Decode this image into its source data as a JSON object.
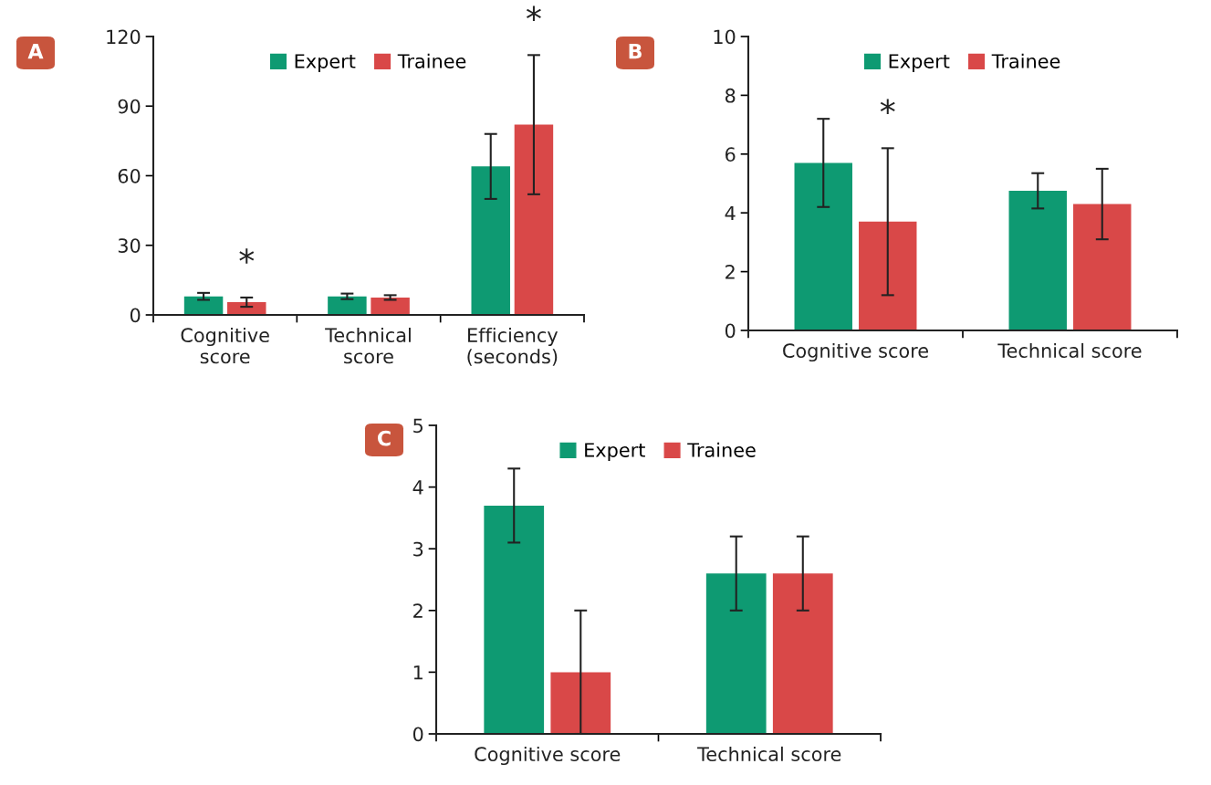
{
  "chart_data": [
    {
      "type": "bar",
      "title": "A",
      "categories": [
        "Cognitive\nscore",
        "Technical\nscore",
        "Efficiency\n(seconds)"
      ],
      "series": [
        {
          "name": "Expert",
          "color": "#0e9a72",
          "values": [
            8,
            8,
            64
          ],
          "errors": [
            1.5,
            1.2,
            14
          ]
        },
        {
          "name": "Trainee",
          "color": "#d94848",
          "values": [
            5.5,
            7.5,
            82
          ],
          "errors": [
            2,
            1,
            30
          ]
        }
      ],
      "ylim": [
        0,
        120
      ],
      "yticks": [
        0,
        30,
        60,
        90,
        120
      ],
      "legend": "top",
      "grid": false,
      "annotations": [
        "*",
        "*"
      ]
    },
    {
      "type": "bar",
      "title": "B",
      "categories": [
        "Cognitive score",
        "Technical score"
      ],
      "series": [
        {
          "name": "Expert",
          "color": "#0e9a72",
          "values": [
            5.7,
            4.75
          ],
          "errors": [
            1.5,
            0.6
          ]
        },
        {
          "name": "Trainee",
          "color": "#d94848",
          "values": [
            3.7,
            4.3
          ],
          "errors": [
            2.5,
            1.2
          ]
        }
      ],
      "ylim": [
        0,
        10
      ],
      "yticks": [
        0,
        2,
        4,
        6,
        8,
        10
      ],
      "legend": "top",
      "grid": false,
      "annotations": [
        "*"
      ]
    },
    {
      "type": "bar",
      "title": "C",
      "categories": [
        "Cognitive score",
        "Technical score"
      ],
      "series": [
        {
          "name": "Expert",
          "color": "#0e9a72",
          "values": [
            3.7,
            2.6
          ],
          "errors": [
            0.6,
            0.6
          ]
        },
        {
          "name": "Trainee",
          "color": "#d94848",
          "values": [
            1.0,
            2.6
          ],
          "errors": [
            1.0,
            0.6
          ]
        }
      ],
      "ylim": [
        0,
        5
      ],
      "yticks": [
        0,
        1,
        2,
        3,
        4,
        5
      ],
      "legend": "top",
      "grid": false
    }
  ]
}
